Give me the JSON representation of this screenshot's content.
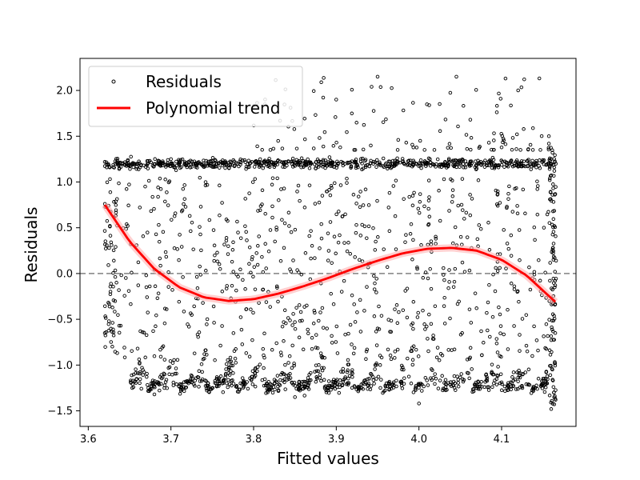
{
  "chart_data": {
    "type": "scatter",
    "xlabel": "Fitted values",
    "ylabel": "Residuals",
    "xlim": [
      3.59,
      4.19
    ],
    "ylim": [
      -1.67,
      2.35
    ],
    "x_ticks": [
      3.6,
      3.7,
      3.8,
      3.9,
      4.0,
      4.1
    ],
    "y_ticks": [
      -1.5,
      -1.0,
      -0.5,
      0.0,
      0.5,
      1.0,
      1.5,
      2.0
    ],
    "x_tick_labels": [
      "3.6",
      "3.7",
      "3.8",
      "3.9",
      "4.0",
      "4.1"
    ],
    "y_tick_labels": [
      "−1.5",
      "−1.0",
      "−0.5",
      "0.0",
      "0.5",
      "1.0",
      "1.5",
      "2.0"
    ],
    "reference_line": {
      "y": 0.0,
      "style": "dashed",
      "color": "#808080"
    },
    "legend": {
      "placement": "top-left",
      "entries": [
        {
          "label": "Residuals",
          "marker": "open-circle"
        },
        {
          "label": "Polynomial trend",
          "marker": "line"
        }
      ]
    },
    "series": [
      {
        "kind": "scatter",
        "marker_color": "#000000",
        "x_range": [
          3.62,
          4.165
        ],
        "bands": [
          {
            "center": 1.2,
            "spread": 0.05,
            "count": 700
          },
          {
            "center": -1.1,
            "spread": 0.15,
            "count": 700
          }
        ],
        "sample_points": [
          [
            3.62,
            1.22
          ],
          [
            3.7,
            1.25
          ],
          [
            3.9,
            1.9
          ],
          [
            3.95,
            2.15
          ],
          [
            4.12,
            2.0
          ],
          [
            3.68,
            -1.32
          ],
          [
            3.85,
            -1.35
          ],
          [
            4.0,
            -1.42
          ],
          [
            4.16,
            -1.48
          ],
          [
            3.62,
            -0.65
          ]
        ]
      },
      {
        "kind": "line",
        "color": "#ff0000",
        "x": [
          3.62,
          3.65,
          3.68,
          3.71,
          3.74,
          3.77,
          3.8,
          3.83,
          3.86,
          3.89,
          3.92,
          3.95,
          3.98,
          4.01,
          4.04,
          4.07,
          4.1,
          4.13,
          4.165
        ],
        "y": [
          0.75,
          0.35,
          0.05,
          -0.15,
          -0.26,
          -0.3,
          -0.28,
          -0.22,
          -0.14,
          -0.05,
          0.05,
          0.14,
          0.22,
          0.27,
          0.28,
          0.25,
          0.15,
          -0.02,
          -0.31
        ]
      }
    ]
  }
}
